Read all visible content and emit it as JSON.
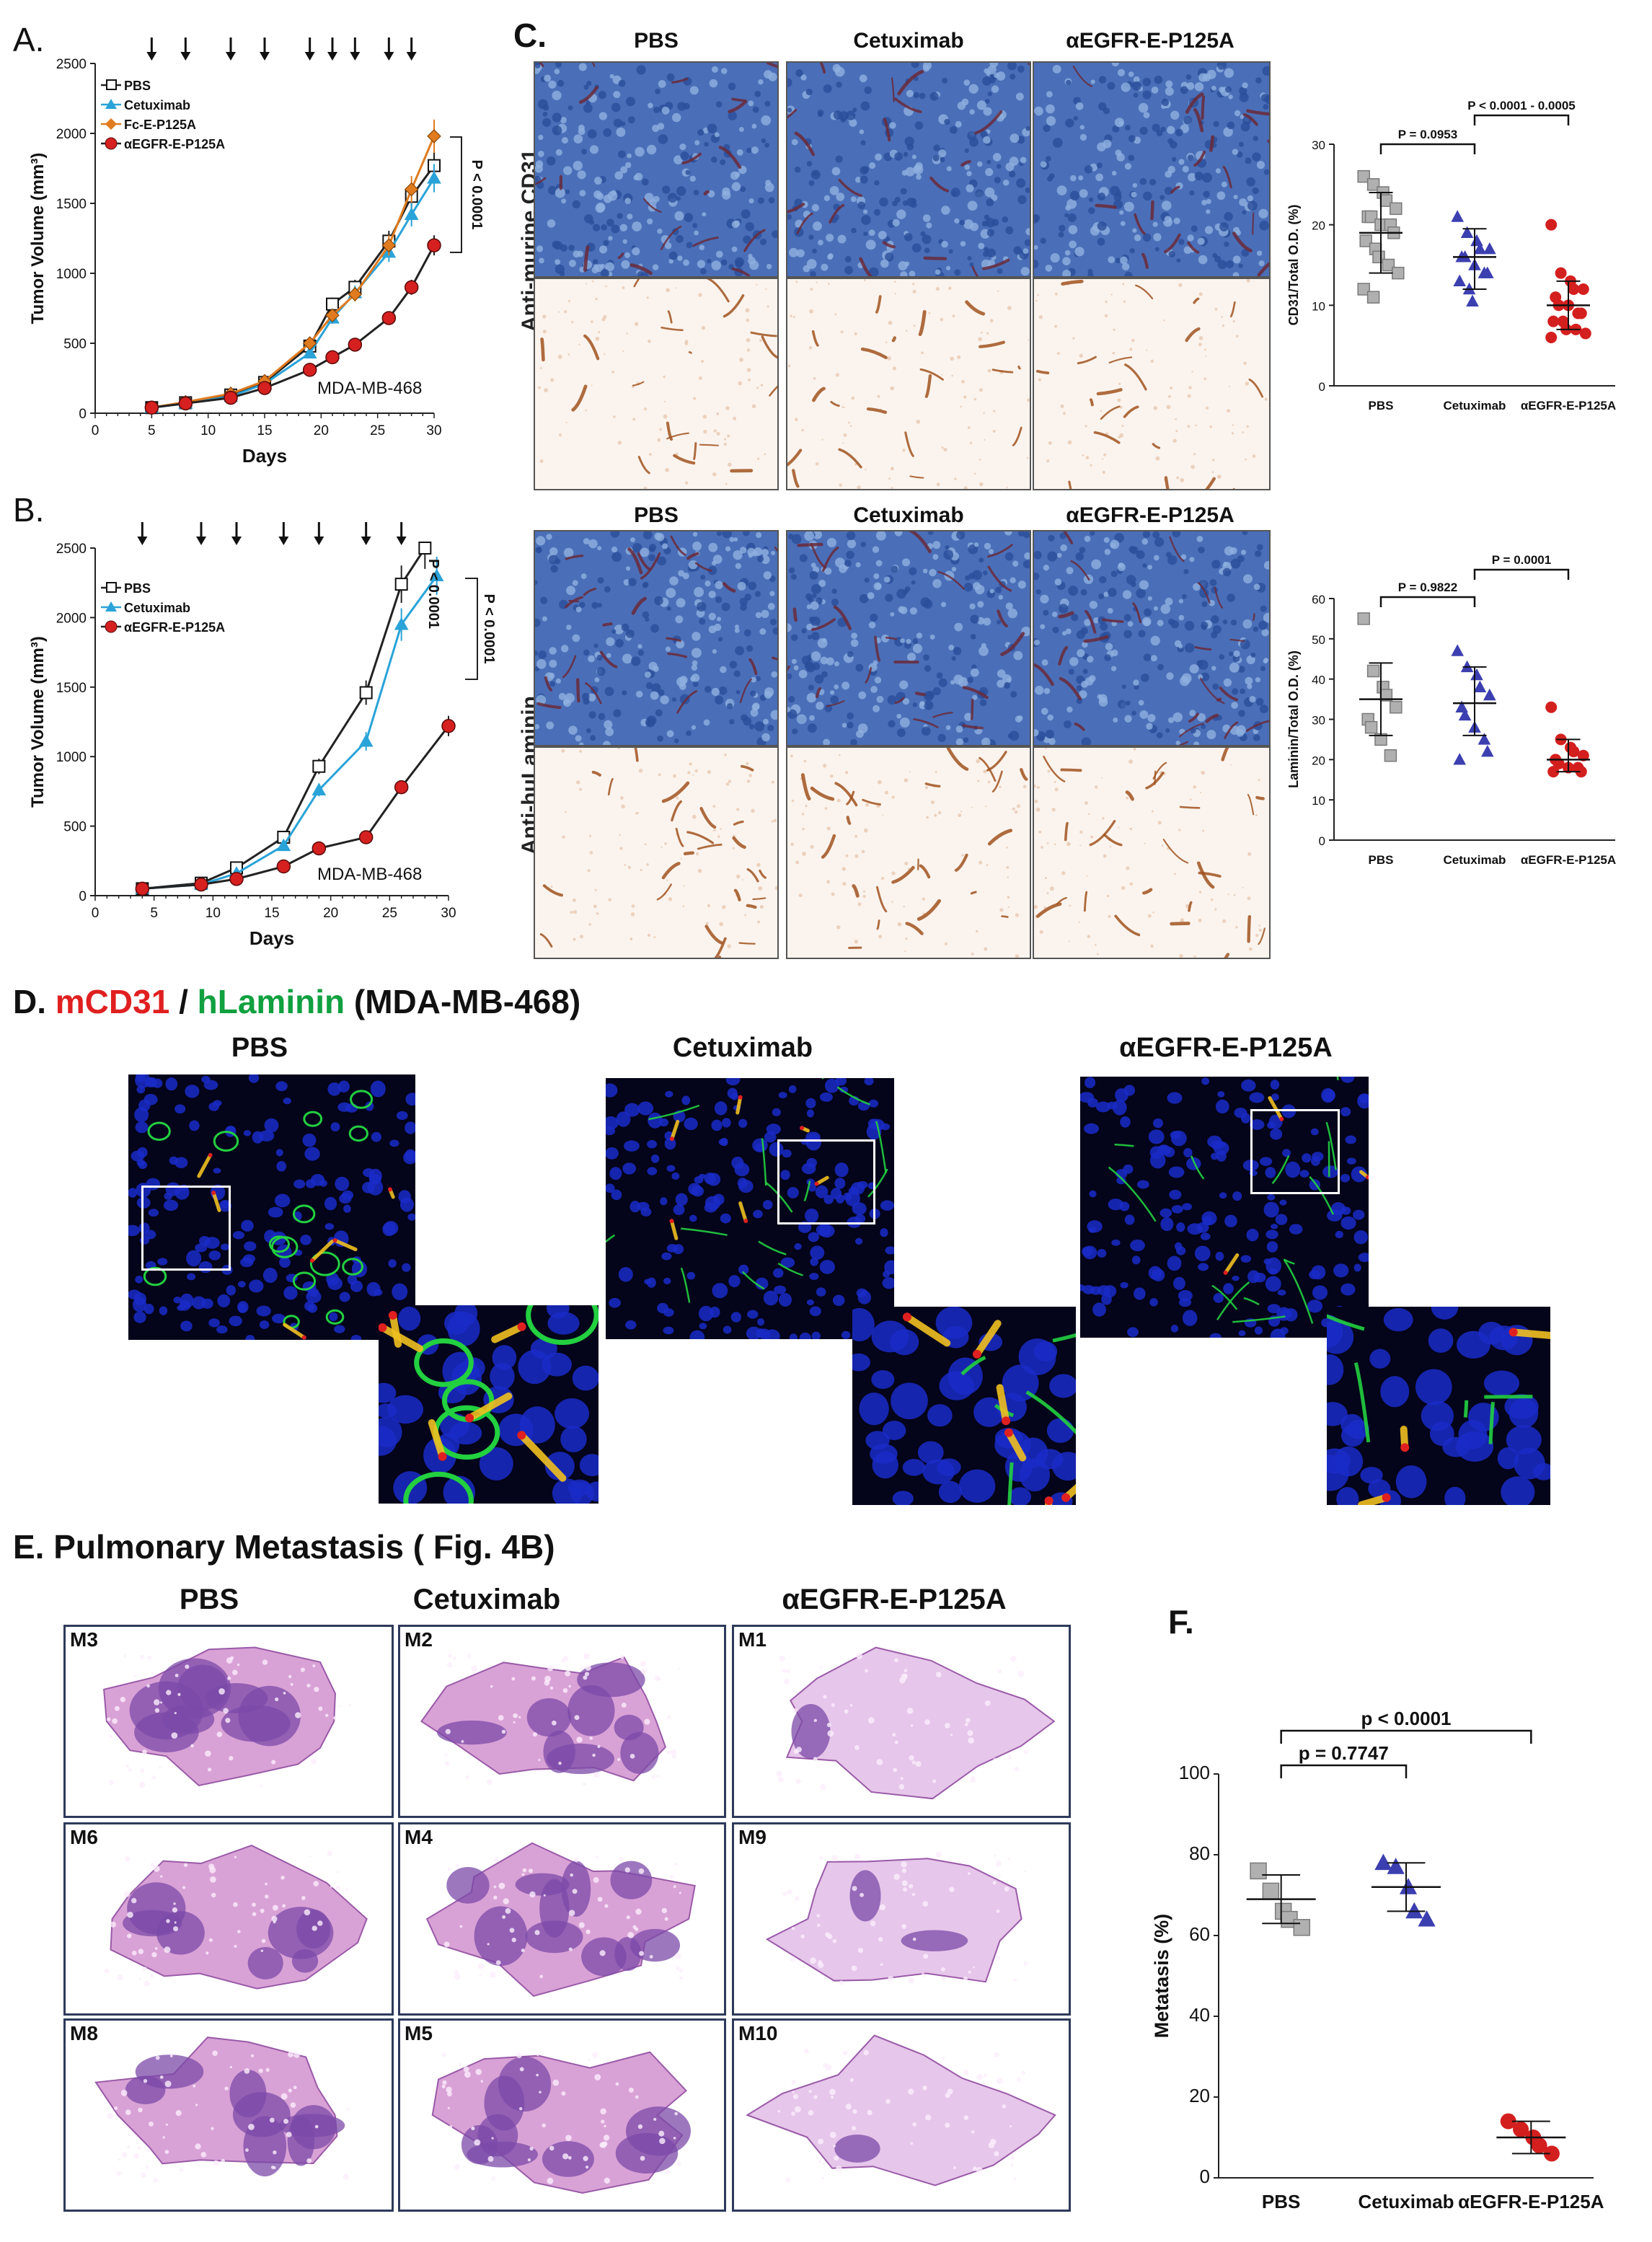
{
  "panel_labels": {
    "a": "A.",
    "b": "B.",
    "c": "C.",
    "f": "F."
  },
  "panel_d_title": {
    "part1": "D.",
    "part2": "mCD31",
    "part3": "/",
    "part4": "hLaminin",
    "part5": "(MDA-MB-468)"
  },
  "panel_e_title": "E. Pulmonary Metastasis ( Fig. 4B)",
  "panel_c": {
    "columns": [
      "PBS",
      "Cetuximab",
      "αEGFR-E-P125A"
    ],
    "row_label_top": "Anti-murine CD31",
    "row_label_bottom": "Anti-huLaminin"
  },
  "panel_d_columns": [
    "PBS",
    "Cetuximab",
    "αEGFR-E-P125A"
  ],
  "panel_e": {
    "columns": [
      "PBS",
      "Cetuximab",
      "αEGFR-E-P125A"
    ],
    "tags": [
      [
        "M3",
        "M2",
        "M1"
      ],
      [
        "M6",
        "M4",
        "M9"
      ],
      [
        "M8",
        "M5",
        "M10"
      ]
    ]
  },
  "colors": {
    "pbs": "#ffffff",
    "cetuximab": "#2aa3d8",
    "fc": "#e07b1f",
    "aegfr": "#d62020",
    "ci_gray": "#b0b0b0",
    "ci_blue": "#3b3fb0",
    "ci_red": "#d41f1f",
    "mcd31": "#e02020",
    "hlaminin": "#10a040"
  },
  "chart_data": [
    {
      "id": "A",
      "type": "line",
      "xlabel": "Days",
      "ylabel": "Tumor Volume (mm³)",
      "xlim": [
        0,
        30
      ],
      "ylim": [
        0,
        2500
      ],
      "xticks": [
        0,
        5,
        10,
        15,
        20,
        25,
        30
      ],
      "yticks": [
        0,
        500,
        1000,
        1500,
        2000,
        2500
      ],
      "dosing_days": [
        5,
        8,
        12,
        15,
        19,
        21,
        23,
        26,
        28
      ],
      "annotation": "MDA-MB-468",
      "pvalue": "P < 0.0001",
      "series": [
        {
          "name": "PBS",
          "x": [
            5,
            8,
            12,
            15,
            19,
            21,
            23,
            26,
            28,
            30
          ],
          "y": [
            40,
            75,
            130,
            220,
            480,
            780,
            900,
            1230,
            1550,
            1770
          ]
        },
        {
          "name": "Cetuximab",
          "x": [
            5,
            8,
            12,
            15,
            19,
            21,
            23,
            26,
            28,
            30
          ],
          "y": [
            40,
            70,
            120,
            210,
            430,
            680,
            860,
            1150,
            1420,
            1680
          ]
        },
        {
          "name": "Fc-E-P125A",
          "x": [
            5,
            8,
            12,
            15,
            19,
            21,
            23,
            26,
            28,
            30
          ],
          "y": [
            40,
            80,
            140,
            230,
            500,
            700,
            850,
            1200,
            1600,
            1980
          ]
        },
        {
          "name": "αEGFR-E-P125A",
          "x": [
            5,
            8,
            12,
            15,
            19,
            21,
            23,
            26,
            28,
            30
          ],
          "y": [
            40,
            70,
            110,
            180,
            310,
            400,
            490,
            680,
            900,
            1200
          ]
        }
      ]
    },
    {
      "id": "B",
      "type": "line",
      "xlabel": "Days",
      "ylabel": "Tumor Volume (mm³)",
      "xlim": [
        0,
        30
      ],
      "ylim": [
        0,
        2500
      ],
      "xticks": [
        0,
        5,
        10,
        15,
        20,
        25,
        30
      ],
      "yticks": [
        0,
        500,
        1000,
        1500,
        2000,
        2500
      ],
      "dosing_days": [
        4,
        9,
        12,
        16,
        19,
        23,
        26
      ],
      "annotation": "MDA-MB-468",
      "pvalues": [
        "P < 0.0001",
        "P < 0.0001"
      ],
      "series": [
        {
          "name": "PBS",
          "x": [
            4,
            9,
            12,
            16,
            19,
            23,
            26,
            28
          ],
          "y": [
            50,
            90,
            200,
            420,
            930,
            1460,
            2240,
            2500
          ]
        },
        {
          "name": "Cetuximab",
          "x": [
            4,
            9,
            12,
            16,
            19,
            23,
            26,
            29
          ],
          "y": [
            50,
            80,
            160,
            360,
            760,
            1110,
            1950,
            2300
          ]
        },
        {
          "name": "αEGFR-E-P125A",
          "x": [
            4,
            9,
            12,
            16,
            19,
            23,
            26,
            30
          ],
          "y": [
            50,
            80,
            120,
            210,
            340,
            420,
            780,
            1220
          ]
        }
      ]
    },
    {
      "id": "C-top",
      "type": "scatter",
      "ylabel": "CD31/Total O.D. (%)",
      "ylim": [
        0,
        30
      ],
      "yticks": [
        0,
        10,
        20,
        30
      ],
      "categories": [
        "PBS",
        "Cetuximab",
        "αEGFR-E-P125A"
      ],
      "comparisons": [
        {
          "from": 0,
          "to": 1,
          "label": "P = 0.0953"
        },
        {
          "from": 1,
          "to": 2,
          "label": "P < 0.0001 - 0.0005"
        }
      ],
      "groups": [
        {
          "name": "PBS",
          "mean": 19,
          "sd_low": 14,
          "sd_high": 24,
          "points": [
            26,
            25,
            24,
            23,
            22,
            21,
            21,
            20,
            20,
            19,
            18,
            17,
            16,
            15,
            14,
            12,
            11
          ]
        },
        {
          "name": "Cetuximab",
          "mean": 16,
          "sd_low": 12,
          "sd_high": 19.5,
          "points": [
            21,
            19,
            18,
            17,
            17,
            16,
            16,
            15,
            14,
            14,
            13,
            12,
            10.5
          ]
        },
        {
          "name": "αEGFR-E-P125A",
          "mean": 10,
          "sd_low": 7,
          "sd_high": 13,
          "points": [
            20,
            14,
            13,
            12,
            12,
            11,
            10,
            10,
            9,
            9,
            8,
            8,
            7,
            7,
            6.5,
            6
          ]
        }
      ]
    },
    {
      "id": "C-bottom",
      "type": "scatter",
      "ylabel": "Laminin/Total O.D. (%)",
      "ylim": [
        0,
        60
      ],
      "yticks": [
        0,
        10,
        20,
        30,
        40,
        50,
        60
      ],
      "categories": [
        "PBS",
        "Cetuximab",
        "αEGFR-E-P125A"
      ],
      "comparisons": [
        {
          "from": 0,
          "to": 1,
          "label": "P = 0.9822"
        },
        {
          "from": 1,
          "to": 2,
          "label": "P = 0.0001"
        }
      ],
      "groups": [
        {
          "name": "PBS",
          "mean": 35,
          "sd_low": 26,
          "sd_high": 44,
          "points": [
            55,
            42,
            38,
            36,
            33,
            30,
            28,
            25,
            21
          ]
        },
        {
          "name": "Cetuximab",
          "mean": 34,
          "sd_low": 26,
          "sd_high": 43,
          "points": [
            47,
            43,
            41,
            38,
            36,
            33,
            31,
            28,
            25,
            22,
            20
          ]
        },
        {
          "name": "αEGFR-E-P125A",
          "mean": 20,
          "sd_low": 17,
          "sd_high": 25,
          "points": [
            33,
            25,
            23,
            22,
            21,
            20,
            19,
            18,
            18,
            17,
            17
          ]
        }
      ]
    },
    {
      "id": "F",
      "type": "scatter",
      "ylabel": "Metatasis (%)",
      "ylim": [
        0,
        100
      ],
      "yticks": [
        0,
        20,
        40,
        60,
        80,
        100
      ],
      "categories": [
        "PBS",
        "Cetuximab",
        "αEGFR-E-P125A"
      ],
      "comparisons": [
        {
          "from": 0,
          "to": 1,
          "label": "p = 0.7747"
        },
        {
          "from": 0,
          "to": 2,
          "label": "p < 0.0001"
        }
      ],
      "groups": [
        {
          "name": "PBS",
          "mean": 69,
          "sd_low": 63,
          "sd_high": 75,
          "points": [
            76,
            71,
            66,
            64,
            62
          ]
        },
        {
          "name": "Cetuximab",
          "mean": 72,
          "sd_low": 66,
          "sd_high": 78,
          "points": [
            78,
            77,
            72,
            66,
            64
          ]
        },
        {
          "name": "αEGFR-E-P125A",
          "mean": 10,
          "sd_low": 6,
          "sd_high": 14,
          "points": [
            14,
            12,
            10,
            8,
            6
          ]
        }
      ]
    }
  ]
}
